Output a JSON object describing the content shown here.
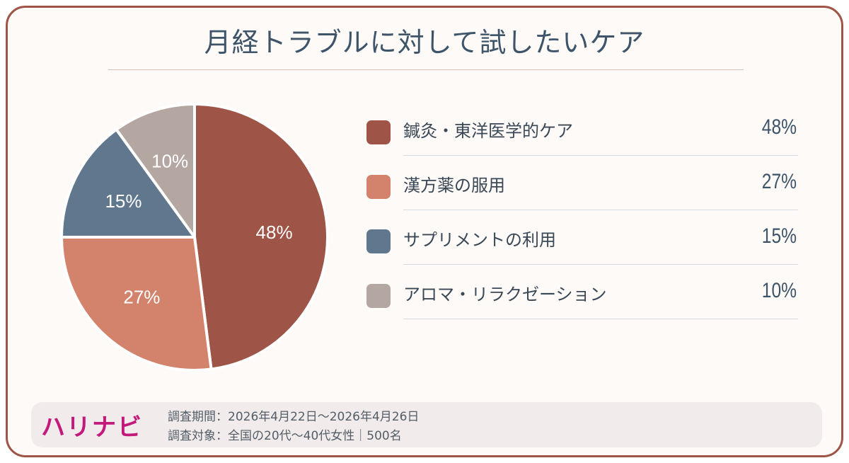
{
  "title": "月経トラブルに対して試したいケア",
  "chart_data": {
    "type": "pie",
    "title": "月経トラブルに対して試したいケア",
    "categories": [
      "鍼灸・東洋医学的ケア",
      "漢方薬の服用",
      "サプリメントの利用",
      "アロマ・リラクゼーション"
    ],
    "values": [
      48,
      27,
      15,
      10
    ],
    "value_labels": [
      "48%",
      "27%",
      "15%",
      "10%"
    ],
    "colors": [
      "#9e5446",
      "#d3836b",
      "#60778e",
      "#b4a7a1"
    ],
    "legend": "right"
  },
  "legend": [
    {
      "label": "鍼灸・東洋医学的ケア",
      "value": "48%",
      "color": "#9e5446"
    },
    {
      "label": "漢方薬の服用",
      "value": "27%",
      "color": "#d3836b"
    },
    {
      "label": "サプリメントの利用",
      "value": "15%",
      "color": "#60778e"
    },
    {
      "label": "アロマ・リラクゼーション",
      "value": "10%",
      "color": "#b4a7a1"
    }
  ],
  "footer": {
    "logo": "ハリナビ",
    "period": "調査期間：2026年4月22日〜2026年4月26日",
    "target": "調査対象：全国の20代〜40代女性｜500名"
  }
}
